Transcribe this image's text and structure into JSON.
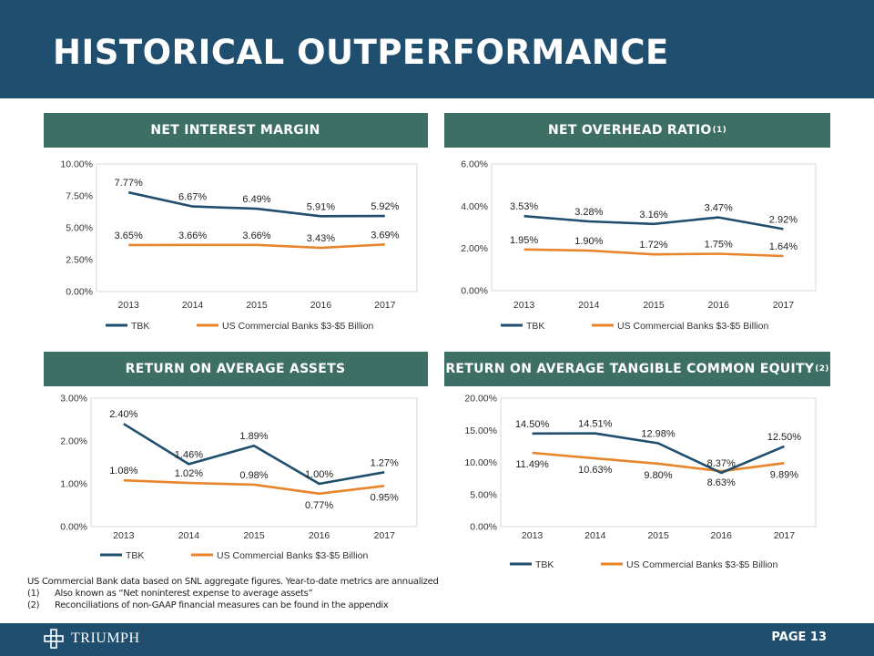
{
  "page": {
    "title": "HISTORICAL OUTPERFORMANCE",
    "page_number": "PAGE 13",
    "logo_text": "TRIUMPH"
  },
  "colors": {
    "header": "#1f4e6e",
    "panel": "#3d6f64",
    "tbk": "#1f4e6e",
    "us": "#e8852a"
  },
  "panels": [
    {
      "title": "NET INTEREST MARGIN",
      "sup": ""
    },
    {
      "title": "NET OVERHEAD RATIO",
      "sup": "(1)"
    },
    {
      "title": "RETURN ON AVERAGE ASSETS",
      "sup": ""
    },
    {
      "title": "RETURN ON AVERAGE TANGIBLE COMMON EQUITY",
      "sup": "(2)"
    }
  ],
  "footnotes": {
    "intro": "US Commercial Bank data based on SNL aggregate figures. Year-to-date metrics are annualized",
    "items": [
      {
        "num": "(1)",
        "text": "Also known as “Net noninterest expense to average assets”"
      },
      {
        "num": "(2)",
        "text": "Reconciliations of non-GAAP financial measures can be found in the appendix"
      }
    ]
  },
  "chart_data": [
    {
      "type": "line",
      "title": "NET INTEREST MARGIN",
      "categories": [
        "2013",
        "2014",
        "2015",
        "2016",
        "2017"
      ],
      "ylim": [
        0,
        10
      ],
      "yticks": [
        0,
        2.5,
        5,
        7.5,
        10
      ],
      "ytick_labels": [
        "0.00%",
        "2.50%",
        "5.00%",
        "7.50%",
        "10.00%"
      ],
      "series": [
        {
          "name": "TBK",
          "values": [
            7.77,
            6.67,
            6.49,
            5.91,
            5.92
          ],
          "labels": [
            "7.77%",
            "6.67%",
            "6.49%",
            "5.91%",
            "5.92%"
          ],
          "label_pos": [
            "above",
            "above",
            "above",
            "above",
            "above"
          ]
        },
        {
          "name": "US Commercial Banks $3-$5 Billion",
          "values": [
            3.65,
            3.66,
            3.66,
            3.43,
            3.69
          ],
          "labels": [
            "3.65%",
            "3.66%",
            "3.66%",
            "3.43%",
            "3.69%"
          ],
          "label_pos": [
            "above",
            "above",
            "above",
            "above",
            "above"
          ]
        }
      ],
      "legend": "bottom"
    },
    {
      "type": "line",
      "title": "NET OVERHEAD RATIO",
      "categories": [
        "2013",
        "2014",
        "2015",
        "2016",
        "2017"
      ],
      "ylim": [
        0,
        6
      ],
      "yticks": [
        0,
        2,
        4,
        6
      ],
      "ytick_labels": [
        "0.00%",
        "2.00%",
        "4.00%",
        "6.00%"
      ],
      "series": [
        {
          "name": "TBK",
          "values": [
            3.53,
            3.28,
            3.16,
            3.47,
            2.92
          ],
          "labels": [
            "3.53%",
            "3.28%",
            "3.16%",
            "3.47%",
            "2.92%"
          ],
          "label_pos": [
            "above",
            "above",
            "above",
            "above",
            "above"
          ]
        },
        {
          "name": "US Commercial Banks $3-$5 Billion",
          "values": [
            1.95,
            1.9,
            1.72,
            1.75,
            1.64
          ],
          "labels": [
            "1.95%",
            "1.90%",
            "1.72%",
            "1.75%",
            "1.64%"
          ],
          "label_pos": [
            "above",
            "above",
            "above",
            "above",
            "above"
          ]
        }
      ],
      "legend": "bottom"
    },
    {
      "type": "line",
      "title": "RETURN ON AVERAGE ASSETS",
      "categories": [
        "2013",
        "2014",
        "2015",
        "2016",
        "2017"
      ],
      "ylim": [
        0,
        3
      ],
      "yticks": [
        0,
        1,
        2,
        3
      ],
      "ytick_labels": [
        "0.00%",
        "1.00%",
        "2.00%",
        "3.00%"
      ],
      "series": [
        {
          "name": "TBK",
          "values": [
            2.4,
            1.46,
            1.89,
            1.0,
            1.27
          ],
          "labels": [
            "2.40%",
            "1.46%",
            "1.89%",
            "1.00%",
            "1.27%"
          ],
          "label_pos": [
            "above",
            "above",
            "above",
            "above",
            "above"
          ]
        },
        {
          "name": "US Commercial Banks $3-$5 Billion",
          "values": [
            1.08,
            1.02,
            0.98,
            0.77,
            0.95
          ],
          "labels": [
            "1.08%",
            "1.02%",
            "0.98%",
            "0.77%",
            "0.95%"
          ],
          "label_pos": [
            "above",
            "above",
            "above",
            "below",
            "below"
          ]
        }
      ],
      "legend": "bottom"
    },
    {
      "type": "line",
      "title": "RETURN ON AVERAGE TANGIBLE COMMON EQUITY",
      "categories": [
        "2013",
        "2014",
        "2015",
        "2016",
        "2017"
      ],
      "ylim": [
        0,
        20
      ],
      "yticks": [
        0,
        5,
        10,
        15,
        20
      ],
      "ytick_labels": [
        "0.00%",
        "5.00%",
        "10.00%",
        "15.00%",
        "20.00%"
      ],
      "series": [
        {
          "name": "TBK",
          "values": [
            14.5,
            14.51,
            12.98,
            8.37,
            12.5
          ],
          "labels": [
            "14.50%",
            "14.51%",
            "12.98%",
            "8.37%",
            "12.50%"
          ],
          "label_pos": [
            "above",
            "above",
            "above",
            "above",
            "above"
          ]
        },
        {
          "name": "US Commercial Banks $3-$5 Billion",
          "values": [
            11.49,
            10.63,
            9.8,
            8.63,
            9.89
          ],
          "labels": [
            "11.49%",
            "10.63%",
            "9.80%",
            "8.63%",
            "9.89%"
          ],
          "label_pos": [
            "below",
            "below",
            "below",
            "below",
            "below"
          ]
        }
      ],
      "legend": "bottom"
    }
  ]
}
